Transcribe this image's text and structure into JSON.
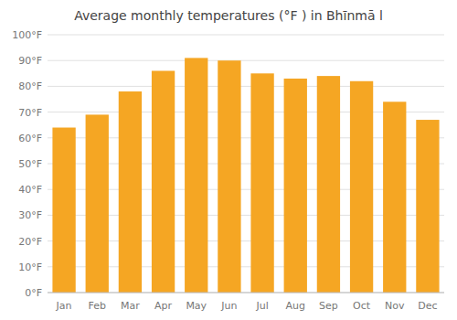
{
  "chart_data": {
    "type": "bar",
    "title": "Average monthly temperatures (°F ) in Bhīnmā l",
    "categories": [
      "Jan",
      "Feb",
      "Mar",
      "Apr",
      "May",
      "Jun",
      "Jul",
      "Aug",
      "Sep",
      "Oct",
      "Nov",
      "Dec"
    ],
    "values": [
      64,
      69,
      78,
      86,
      91,
      90,
      85,
      83,
      84,
      82,
      74,
      67
    ],
    "color": "#F5A623",
    "ylim": [
      0,
      100
    ],
    "yticks": [
      {
        "value": 0,
        "label": "0°F"
      },
      {
        "value": 10,
        "label": "10°F"
      },
      {
        "value": 20,
        "label": "20°F"
      },
      {
        "value": 30,
        "label": "30°F"
      },
      {
        "value": 40,
        "label": "40°F"
      },
      {
        "value": 50,
        "label": "50°F"
      },
      {
        "value": 60,
        "label": "60°F"
      },
      {
        "value": 70,
        "label": "70°F"
      },
      {
        "value": 80,
        "label": "80°F"
      },
      {
        "value": 90,
        "label": "90°F"
      },
      {
        "value": 100,
        "label": "100°F"
      }
    ],
    "grid": true
  }
}
